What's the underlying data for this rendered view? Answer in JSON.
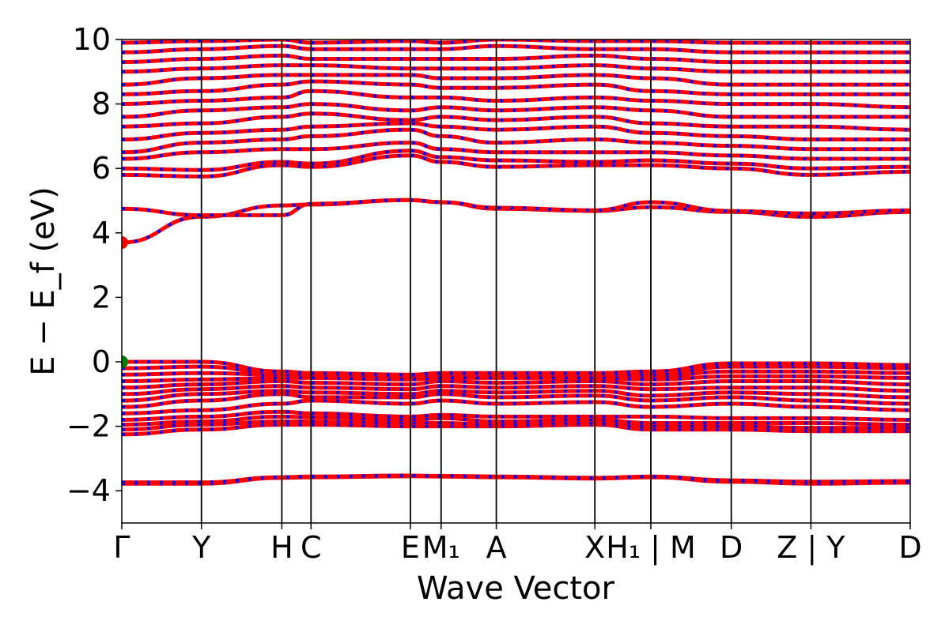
{
  "chart_data": {
    "type": "line",
    "title": "",
    "xlabel": "Wave Vector",
    "ylabel": "E − E_f (eV)",
    "ylim": [
      -5,
      10
    ],
    "yticks": [
      -4,
      -2,
      0,
      2,
      4,
      6,
      8,
      10
    ],
    "grid": false,
    "x_range": [
      0,
      1
    ],
    "kpoint_ticks": [
      {
        "label": "Γ",
        "x": 0.0
      },
      {
        "label": "Y",
        "x": 0.101
      },
      {
        "label": "H",
        "x": 0.203
      },
      {
        "label": "C",
        "x": 0.24
      },
      {
        "label": "E",
        "x": 0.366
      },
      {
        "label": "M₁",
        "x": 0.405
      },
      {
        "label": "A",
        "x": 0.475
      },
      {
        "label": "X",
        "x": 0.6
      },
      {
        "label": "H₁ | M",
        "x": 0.671
      },
      {
        "label": "D",
        "x": 0.773
      },
      {
        "label": "Z | Y",
        "x": 0.874
      },
      {
        "label": "D",
        "x": 1.0
      }
    ],
    "colors": {
      "spin_up": "#ff0000",
      "spin_down": "#0000ff",
      "cbm_marker": "#ff0000",
      "vbm_marker": "#008000"
    },
    "markers": [
      {
        "name": "CBM",
        "x": 0.0,
        "y": 3.7
      },
      {
        "name": "VBM",
        "x": 0.0,
        "y": 0.0
      }
    ],
    "band_knots_x": [
      0.0,
      0.101,
      0.203,
      0.24,
      0.366,
      0.405,
      0.475,
      0.6,
      0.671,
      0.773,
      0.874,
      1.0
    ],
    "series": [
      {
        "values": [
          -3.78,
          -3.78,
          -3.6,
          -3.58,
          -3.55,
          -3.56,
          -3.58,
          -3.62,
          -3.58,
          -3.72,
          -3.78,
          -3.75
        ]
      },
      {
        "values": [
          -3.74,
          -3.74,
          -3.58,
          -3.56,
          -3.53,
          -3.54,
          -3.56,
          -3.6,
          -3.56,
          -3.68,
          -3.72,
          -3.7
        ]
      },
      {
        "values": [
          -2.25,
          -2.1,
          -1.95,
          -1.95,
          -2.0,
          -2.0,
          -2.0,
          -1.95,
          -2.1,
          -2.1,
          -2.15,
          -2.15
        ]
      },
      {
        "values": [
          -2.1,
          -1.95,
          -1.85,
          -1.85,
          -1.9,
          -1.9,
          -1.95,
          -1.9,
          -2.0,
          -2.0,
          -2.05,
          -2.05
        ]
      },
      {
        "values": [
          -1.95,
          -1.85,
          -1.7,
          -1.72,
          -1.8,
          -1.75,
          -1.85,
          -1.8,
          -1.9,
          -1.9,
          -1.9,
          -1.95
        ]
      },
      {
        "values": [
          -1.8,
          -1.7,
          -1.55,
          -1.6,
          -1.7,
          -1.65,
          -1.7,
          -1.7,
          -1.7,
          -1.75,
          -1.75,
          -1.8
        ]
      },
      {
        "values": [
          -1.6,
          -1.5,
          -1.3,
          -1.2,
          -1.3,
          -1.2,
          -1.3,
          -1.25,
          -1.4,
          -1.3,
          -1.4,
          -1.5
        ]
      },
      {
        "values": [
          -1.4,
          -1.2,
          -1.0,
          -1.1,
          -1.1,
          -1.0,
          -1.1,
          -1.05,
          -1.2,
          -1.1,
          -1.2,
          -1.3
        ]
      },
      {
        "values": [
          -1.2,
          -1.0,
          -0.9,
          -0.95,
          -1.0,
          -0.9,
          -0.95,
          -0.9,
          -1.05,
          -0.95,
          -1.0,
          -1.1
        ]
      },
      {
        "values": [
          -1.0,
          -0.85,
          -0.75,
          -0.8,
          -0.85,
          -0.75,
          -0.8,
          -0.75,
          -0.85,
          -0.8,
          -0.8,
          -0.9
        ]
      },
      {
        "values": [
          -0.8,
          -0.7,
          -0.6,
          -0.65,
          -0.7,
          -0.6,
          -0.65,
          -0.6,
          -0.7,
          -0.6,
          -0.6,
          -0.7
        ]
      },
      {
        "values": [
          -0.6,
          -0.55,
          -0.5,
          -0.5,
          -0.55,
          -0.5,
          -0.5,
          -0.5,
          -0.55,
          -0.45,
          -0.45,
          -0.5
        ]
      },
      {
        "values": [
          -0.4,
          -0.35,
          -0.4,
          -0.4,
          -0.45,
          -0.4,
          -0.4,
          -0.4,
          -0.45,
          -0.3,
          -0.3,
          -0.35
        ]
      },
      {
        "values": [
          -0.2,
          -0.15,
          -0.35,
          -0.38,
          -0.42,
          -0.38,
          -0.38,
          -0.38,
          -0.4,
          -0.15,
          -0.15,
          -0.2
        ]
      },
      {
        "values": [
          0.0,
          0.0,
          -0.3,
          -0.35,
          -0.4,
          -0.35,
          -0.35,
          -0.35,
          -0.3,
          -0.05,
          -0.05,
          -0.1
        ]
      },
      {
        "values": [
          3.7,
          4.5,
          4.85,
          4.88,
          5.02,
          4.95,
          4.75,
          4.68,
          4.8,
          4.65,
          4.5,
          4.65
        ]
      },
      {
        "values": [
          4.75,
          4.55,
          4.55,
          4.9,
          5.02,
          4.95,
          4.78,
          4.7,
          4.95,
          4.68,
          4.6,
          4.7
        ]
      },
      {
        "values": [
          5.8,
          5.75,
          6.1,
          6.05,
          6.4,
          6.2,
          6.05,
          6.1,
          6.1,
          6.0,
          5.8,
          5.9
        ]
      },
      {
        "values": [
          6.0,
          5.95,
          6.2,
          6.15,
          6.55,
          6.35,
          6.25,
          6.2,
          6.25,
          6.15,
          6.0,
          6.05
        ]
      },
      {
        "values": [
          6.3,
          6.5,
          6.6,
          6.6,
          6.8,
          6.6,
          6.5,
          6.5,
          6.5,
          6.4,
          6.3,
          6.3
        ]
      },
      {
        "values": [
          6.5,
          6.8,
          6.9,
          7.0,
          7.2,
          7.0,
          6.8,
          6.9,
          6.8,
          6.7,
          6.6,
          6.6
        ]
      },
      {
        "values": [
          6.9,
          7.1,
          7.2,
          7.3,
          7.4,
          7.3,
          7.2,
          7.3,
          7.1,
          7.0,
          6.9,
          6.9
        ]
      },
      {
        "values": [
          7.3,
          7.4,
          7.6,
          7.7,
          7.5,
          7.6,
          7.5,
          7.6,
          7.4,
          7.3,
          7.3,
          7.2
        ]
      },
      {
        "values": [
          7.6,
          7.8,
          7.9,
          8.0,
          7.8,
          7.9,
          7.8,
          7.9,
          7.8,
          7.6,
          7.6,
          7.6
        ]
      },
      {
        "values": [
          8.0,
          8.1,
          8.2,
          8.4,
          8.2,
          8.2,
          8.1,
          8.2,
          8.1,
          8.0,
          8.0,
          7.9
        ]
      },
      {
        "values": [
          8.3,
          8.4,
          8.6,
          8.7,
          8.6,
          8.5,
          8.5,
          8.6,
          8.4,
          8.3,
          8.3,
          8.3
        ]
      },
      {
        "values": [
          8.6,
          8.8,
          8.9,
          8.9,
          8.9,
          8.8,
          8.8,
          8.9,
          8.8,
          8.6,
          8.6,
          8.6
        ]
      },
      {
        "values": [
          9.0,
          9.1,
          9.2,
          9.2,
          9.1,
          9.1,
          9.1,
          9.2,
          9.1,
          9.0,
          9.0,
          9.0
        ]
      },
      {
        "values": [
          9.3,
          9.4,
          9.5,
          9.4,
          9.4,
          9.4,
          9.4,
          9.5,
          9.4,
          9.3,
          9.3,
          9.3
        ]
      },
      {
        "values": [
          9.6,
          9.7,
          9.8,
          9.7,
          9.7,
          9.7,
          9.8,
          9.7,
          9.7,
          9.6,
          9.6,
          9.6
        ]
      },
      {
        "values": [
          9.9,
          9.95,
          10.0,
          9.9,
          9.95,
          9.9,
          10.0,
          9.95,
          9.95,
          9.9,
          9.9,
          9.9
        ]
      }
    ]
  }
}
